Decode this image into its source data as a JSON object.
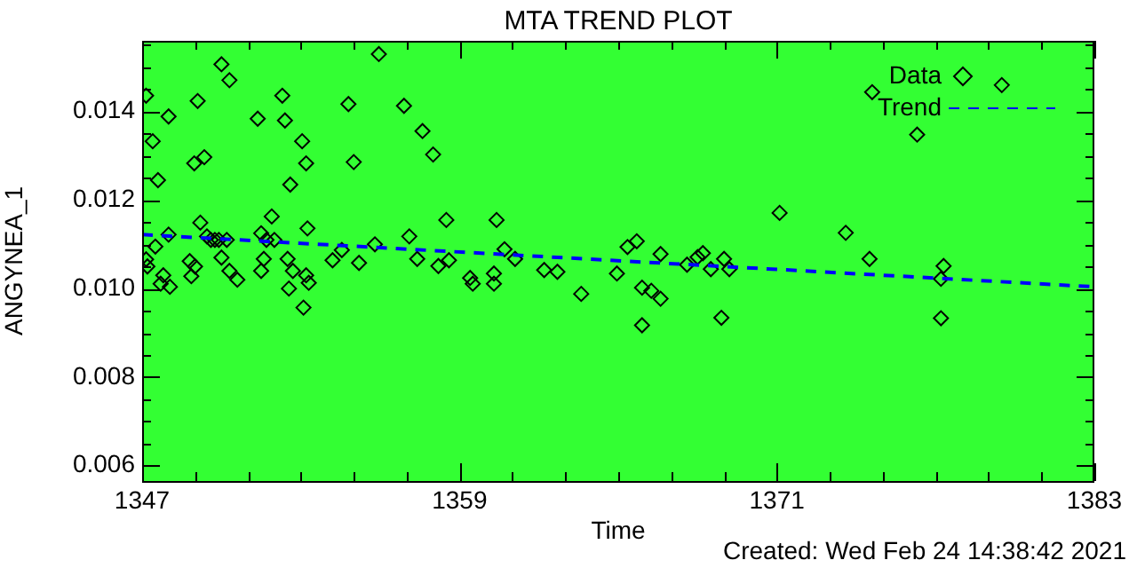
{
  "chart_data": {
    "type": "scatter",
    "title": "MTA TREND PLOT",
    "xlabel": "Time",
    "ylabel": "ANGYNEA_1",
    "annotations": [
      "Created: Wed Feb 24 14:38:42 2021"
    ],
    "xlim": [
      1347,
      1383
    ],
    "xticks": [
      1347,
      {
        "value": 1349,
        "label": null
      },
      {
        "value": 1351,
        "label": null
      },
      {
        "value": 1353,
        "label": null
      },
      {
        "value": 1355,
        "label": null
      },
      {
        "value": 1357,
        "label": null
      },
      1359,
      {
        "value": 1361,
        "label": null
      },
      {
        "value": 1363,
        "label": null
      },
      {
        "value": 1365,
        "label": null
      },
      {
        "value": 1367,
        "label": null
      },
      {
        "value": 1369,
        "label": null
      },
      1371,
      {
        "value": 1373,
        "label": null
      },
      {
        "value": 1375,
        "label": null
      },
      {
        "value": 1377,
        "label": null
      },
      {
        "value": 1379,
        "label": null
      },
      {
        "value": 1381,
        "label": null
      },
      1383
    ],
    "ylim": [
      0.00565,
      0.0156
    ],
    "yticks": [
      {
        "value": 0.006,
        "label": "0.006"
      },
      {
        "value": 0.0065,
        "label": null
      },
      {
        "value": 0.007,
        "label": null
      },
      {
        "value": 0.0075,
        "label": null
      },
      {
        "value": 0.008,
        "label": "0.008"
      },
      {
        "value": 0.0085,
        "label": null
      },
      {
        "value": 0.009,
        "label": null
      },
      {
        "value": 0.0095,
        "label": null
      },
      {
        "value": 0.01,
        "label": "0.010"
      },
      {
        "value": 0.0105,
        "label": null
      },
      {
        "value": 0.011,
        "label": null
      },
      {
        "value": 0.0115,
        "label": null
      },
      {
        "value": 0.012,
        "label": "0.012"
      },
      {
        "value": 0.0125,
        "label": null
      },
      {
        "value": 0.013,
        "label": null
      },
      {
        "value": 0.0135,
        "label": null
      },
      {
        "value": 0.014,
        "label": "0.014"
      },
      {
        "value": 0.0145,
        "label": null
      },
      {
        "value": 0.015,
        "label": null
      },
      {
        "value": 0.0155,
        "label": null
      }
    ],
    "grid": false,
    "legend": "top right",
    "series": [
      {
        "name": "Data",
        "type": "scatter",
        "color": "#000000",
        "marker": "diamond",
        "x": [
          1347.15,
          1347.4,
          1347.6,
          1348.0,
          1347.15,
          1347.2,
          1347.5,
          1348.0,
          1347.7,
          1348.05,
          1347.8,
          1349.1,
          1348.97,
          1349.35,
          1350.0,
          1350.3,
          1349.2,
          1348.8,
          1348.86,
          1349.0,
          1349.45,
          1349.6,
          1349.75,
          1349.9,
          1350.2,
          1350.6,
          1350.0,
          1350.3,
          1351.37,
          1351.5,
          1351.6,
          1351.5,
          1351.9,
          1351.7,
          1352.0,
          1352.3,
          1352.4,
          1353.05,
          1353.2,
          1352.6,
          1353.25,
          1352.5,
          1352.7,
          1352.55,
          1353.2,
          1353.3,
          1353.1,
          1354.2,
          1354.55,
          1354.8,
          1355.0,
          1355.2,
          1355.8,
          1355.95,
          1356.9,
          1357.6,
          1358.0,
          1358.5,
          1360.4,
          1357.1,
          1357.4,
          1358.2,
          1358.6,
          1359.4,
          1359.5,
          1360.3,
          1360.3,
          1360.7,
          1361.1,
          1362.2,
          1362.7,
          1363.6,
          1364.95,
          1365.35,
          1365.7,
          1366.6,
          1365.9,
          1366.25,
          1366.6,
          1365.9,
          1367.6,
          1368.0,
          1368.2,
          1368.5,
          1369.0,
          1369.2,
          1368.9,
          1371.1,
          1373.6,
          1374.5,
          1374.6,
          1376.3,
          1379.5,
          1377.3,
          1377.2,
          1377.2
        ],
        "values": [
          0.01436,
          0.01333,
          0.01245,
          0.01389,
          0.01066,
          0.0105,
          0.01095,
          0.01122,
          0.01011,
          0.01004,
          0.0103,
          0.01424,
          0.01283,
          0.01297,
          0.01507,
          0.01471,
          0.01149,
          0.01062,
          0.01028,
          0.0105,
          0.01118,
          0.0111,
          0.0111,
          0.0111,
          0.0111,
          0.0102,
          0.0107,
          0.0104,
          0.01384,
          0.01125,
          0.01067,
          0.0104,
          0.01163,
          0.0111,
          0.0111,
          0.01436,
          0.0138,
          0.01333,
          0.01283,
          0.01235,
          0.01136,
          0.01067,
          0.0104,
          0.01,
          0.0103,
          0.01013,
          0.00957,
          0.01064,
          0.01087,
          0.01417,
          0.01286,
          0.01058,
          0.011,
          0.0153,
          0.01413,
          0.01356,
          0.01303,
          0.01155,
          0.01155,
          0.01118,
          0.01067,
          0.01051,
          0.01064,
          0.01024,
          0.01011,
          0.01034,
          0.01011,
          0.01089,
          0.01067,
          0.01042,
          0.01038,
          0.00988,
          0.01034,
          0.01094,
          0.01107,
          0.01078,
          0.01002,
          0.00995,
          0.00977,
          0.00917,
          0.01054,
          0.01071,
          0.0108,
          0.01044,
          0.01067,
          0.01044,
          0.00934,
          0.01171,
          0.01126,
          0.01067,
          0.01444,
          0.01348,
          0.0146,
          0.01051,
          0.01022,
          0.00933
        ]
      },
      {
        "name": "Trend",
        "type": "line",
        "color": "#0000ff",
        "marker": "none",
        "line_style": "dashed",
        "x": [
          1347,
          1383
        ],
        "values": [
          0.01122,
          0.01004
        ]
      }
    ]
  }
}
